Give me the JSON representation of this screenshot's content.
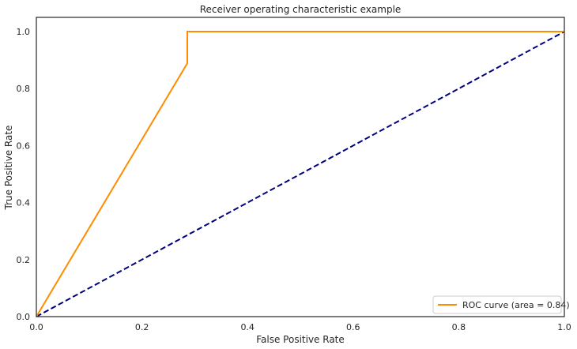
{
  "chart_data": {
    "type": "line",
    "title": "Receiver operating characteristic example",
    "xlabel": "False Positive Rate",
    "ylabel": "True Positive Rate",
    "xlim": [
      0.0,
      1.0
    ],
    "ylim": [
      0.0,
      1.05
    ],
    "xticks": [
      "0.0",
      "0.2",
      "0.4",
      "0.6",
      "0.8",
      "1.0"
    ],
    "yticks": [
      "0.0",
      "0.2",
      "0.4",
      "0.6",
      "0.8",
      "1.0"
    ],
    "grid": false,
    "legend_position": "lower right",
    "series": [
      {
        "name": "ROC curve (area = 0.84)",
        "color": "#ff8c00",
        "style": "solid",
        "x": [
          0.0,
          0.286,
          0.286,
          1.0
        ],
        "y": [
          0.0,
          0.889,
          1.0,
          1.0
        ]
      },
      {
        "color": "#000080",
        "style": "dashed",
        "x": [
          0.0,
          1.0
        ],
        "y": [
          0.0,
          1.0
        ]
      }
    ]
  }
}
